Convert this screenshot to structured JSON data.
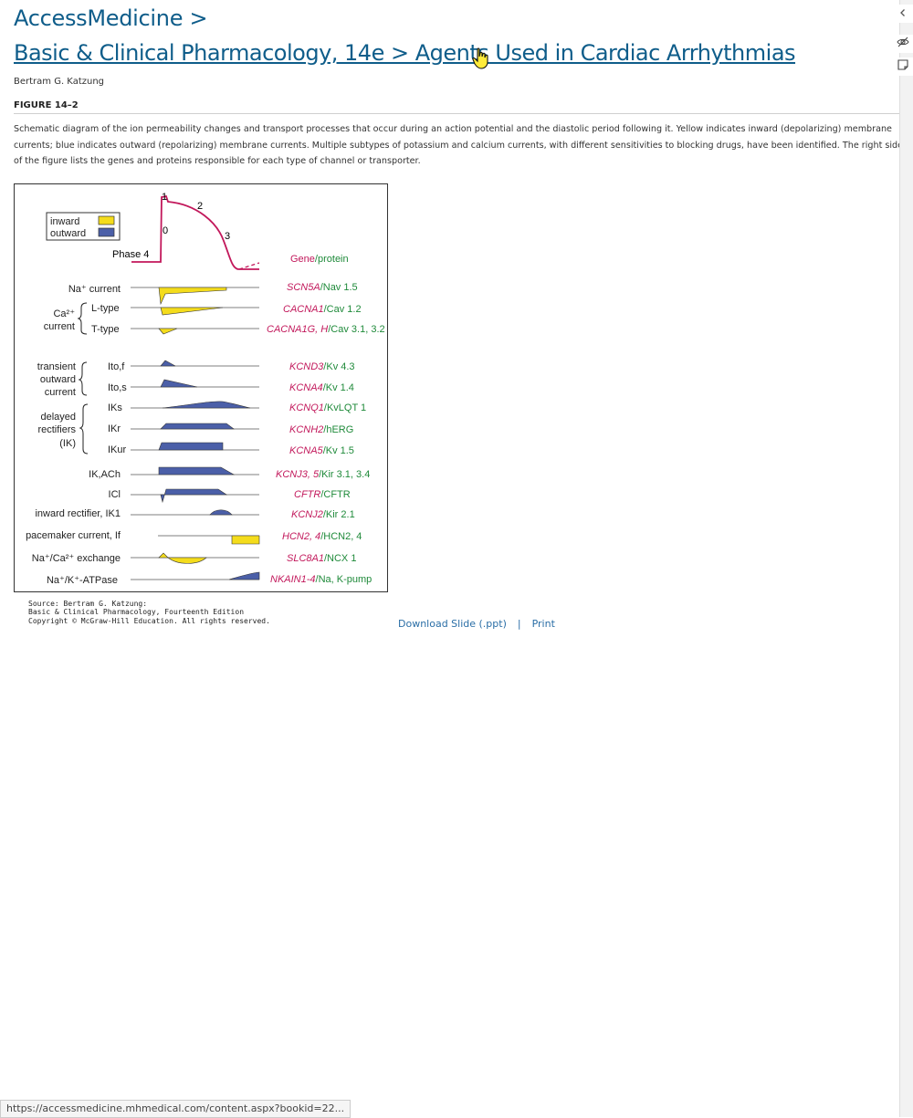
{
  "header": {
    "site_title": "AccessMedicine >",
    "breadcrumb": "Basic & Clinical Pharmacology, 14e > Agents Used in Cardiac Arrhythmias"
  },
  "author": "Bertram G. Katzung",
  "figure": {
    "label": "FIGURE 14–2",
    "caption": "Schematic diagram of the ion permeability changes and transport processes that occur during an action potential and the diastolic period following it. Yellow indicates inward (depolarizing) membrane currents; blue indicates outward (repolarizing) membrane currents. Multiple subtypes of potassium and calcium currents, with different sensitivities to blocking drugs, have been identified. The right side of the figure lists the genes and proteins responsible for each type of channel or transporter.",
    "legend": {
      "inward": "inward",
      "outward": "outward",
      "inward_color": "#f4dc1c",
      "outward_color": "#4b5fa8"
    },
    "ap_labels": {
      "p0": "0",
      "p1": "1",
      "p2": "2",
      "p3": "3",
      "p4": "Phase 4"
    },
    "gene_header": {
      "gene": "Gene",
      "sep": "/",
      "protein": "protein"
    },
    "rows": [
      {
        "label": "Na⁺ current",
        "gene": "SCN5A",
        "protein": "/Nav 1.5"
      },
      {
        "label": "L-type",
        "gene": "CACNA1",
        "protein": "/Cav 1.2"
      },
      {
        "label": "T-type",
        "gene": "CACNA1G, H",
        "protein": "/Cav 3.1, 3.2"
      },
      {
        "label": "Ito,f",
        "gene": "KCND3",
        "protein": "/Kv 4.3"
      },
      {
        "label": "Ito,s",
        "gene": "KCNA4",
        "protein": "/Kv 1.4"
      },
      {
        "label": "IKs",
        "gene": "KCNQ1",
        "protein": "/KvLQT 1"
      },
      {
        "label": "IKr",
        "gene": "KCNH2",
        "protein": "/hERG"
      },
      {
        "label": "IKur",
        "gene": "KCNA5",
        "protein": "/Kv 1.5"
      },
      {
        "label": "IK,ACh",
        "gene": "KCNJ3, 5",
        "protein": "/Kir 3.1, 3.4"
      },
      {
        "label": "ICl",
        "gene": "CFTR",
        "protein": "/CFTR"
      },
      {
        "label": "inward rectifier, IK1",
        "gene": "KCNJ2",
        "protein": "/Kir 2.1"
      },
      {
        "label": "pacemaker current, If",
        "gene": "HCN2, 4",
        "protein": "/HCN2, 4"
      },
      {
        "label": "Na⁺/Ca²⁺ exchange",
        "gene": "SLC8A1",
        "protein": "/NCX 1"
      },
      {
        "label": "Na⁺/K⁺-ATPase",
        "gene": "NKAIN1-4",
        "protein": "/Na, K-pump"
      }
    ],
    "groups": {
      "ca": "Ca²⁺",
      "ca_current": "current",
      "transient": "transient",
      "outward": "outward",
      "current": "current",
      "delayed": "delayed",
      "rectifiers": "rectifiers",
      "ik": "(IK)"
    },
    "source_lines": [
      "Source: Bertram G. Katzung:",
      "Basic & Clinical Pharmacology, Fourteenth Edition",
      "Copyright © McGraw-Hill Education. All rights reserved."
    ]
  },
  "actions": {
    "download": "Download Slide (.ppt)",
    "separator": "|",
    "print": "Print"
  },
  "status_url": "https://accessmedicine.mhmedical.com/content.aspx?bookid=22...",
  "colors": {
    "link": "#0f5d8a",
    "gene": "#c2185b",
    "protein": "#1f8a3a",
    "ap_trace": "#c2185b"
  }
}
